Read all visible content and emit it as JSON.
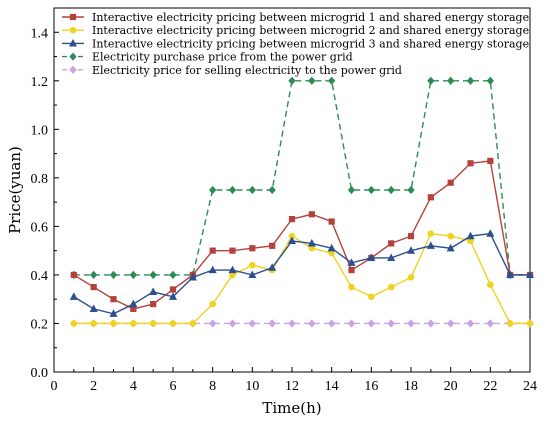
{
  "chart_data": {
    "type": "line",
    "xlabel": "Time(h)",
    "ylabel": "Price(yuan)",
    "xlim": [
      0,
      24
    ],
    "ylim": [
      0,
      1.5
    ],
    "xticks": [
      0,
      2,
      4,
      6,
      8,
      10,
      12,
      14,
      16,
      18,
      20,
      22,
      24
    ],
    "yticks": [
      0.0,
      0.2,
      0.4,
      0.6,
      0.8,
      1.0,
      1.2,
      1.4
    ],
    "ytick_labels": [
      "0.0",
      "0.2",
      "0.4",
      "0.6",
      "0.8",
      "1.0",
      "1.2",
      "1.4"
    ],
    "grid": false,
    "legend_position": "top-left",
    "x": [
      1,
      2,
      3,
      4,
      5,
      6,
      7,
      8,
      9,
      10,
      11,
      12,
      13,
      14,
      15,
      16,
      17,
      18,
      19,
      20,
      21,
      22,
      23,
      24
    ],
    "series": [
      {
        "name": "Interactive electricity pricing between microgrid 1 and shared energy storage",
        "color": "#b5423b",
        "marker": "square",
        "dash": "solid",
        "values": [
          0.4,
          0.35,
          0.3,
          0.26,
          0.28,
          0.34,
          0.4,
          0.5,
          0.5,
          0.51,
          0.52,
          0.63,
          0.65,
          0.62,
          0.42,
          0.47,
          0.53,
          0.56,
          0.72,
          0.78,
          0.86,
          0.87,
          0.4,
          0.4
        ]
      },
      {
        "name": "Interactive electricity pricing between microgrid 2 and shared energy storage",
        "color": "#eed320",
        "marker": "circle",
        "dash": "solid",
        "values": [
          0.2,
          0.2,
          0.2,
          0.2,
          0.2,
          0.2,
          0.2,
          0.28,
          0.4,
          0.44,
          0.42,
          0.56,
          0.51,
          0.49,
          0.35,
          0.31,
          0.35,
          0.39,
          0.57,
          0.56,
          0.54,
          0.36,
          0.2,
          0.2
        ]
      },
      {
        "name": "Interactive electricity pricing between microgrid 3 and shared energy storage",
        "color": "#2c4f8f",
        "marker": "triangle",
        "dash": "solid",
        "values": [
          0.31,
          0.26,
          0.24,
          0.28,
          0.33,
          0.31,
          0.39,
          0.42,
          0.42,
          0.4,
          0.43,
          0.54,
          0.53,
          0.51,
          0.45,
          0.47,
          0.47,
          0.5,
          0.52,
          0.51,
          0.56,
          0.57,
          0.4,
          0.4
        ]
      },
      {
        "name": "Electricity purchase price from the power grid",
        "color": "#2e8b57",
        "marker": "diamond",
        "dash": "dashed",
        "values": [
          0.4,
          0.4,
          0.4,
          0.4,
          0.4,
          0.4,
          0.4,
          0.75,
          0.75,
          0.75,
          0.75,
          1.2,
          1.2,
          1.2,
          0.75,
          0.75,
          0.75,
          0.75,
          1.2,
          1.2,
          1.2,
          1.2,
          0.4,
          0.4
        ]
      },
      {
        "name": "Electricity price for selling electricity to the power grid",
        "color": "#c8a4e6",
        "marker": "diamond",
        "dash": "dashed",
        "values": [
          0.2,
          0.2,
          0.2,
          0.2,
          0.2,
          0.2,
          0.2,
          0.2,
          0.2,
          0.2,
          0.2,
          0.2,
          0.2,
          0.2,
          0.2,
          0.2,
          0.2,
          0.2,
          0.2,
          0.2,
          0.2,
          0.2,
          0.2,
          0.2
        ]
      }
    ]
  }
}
